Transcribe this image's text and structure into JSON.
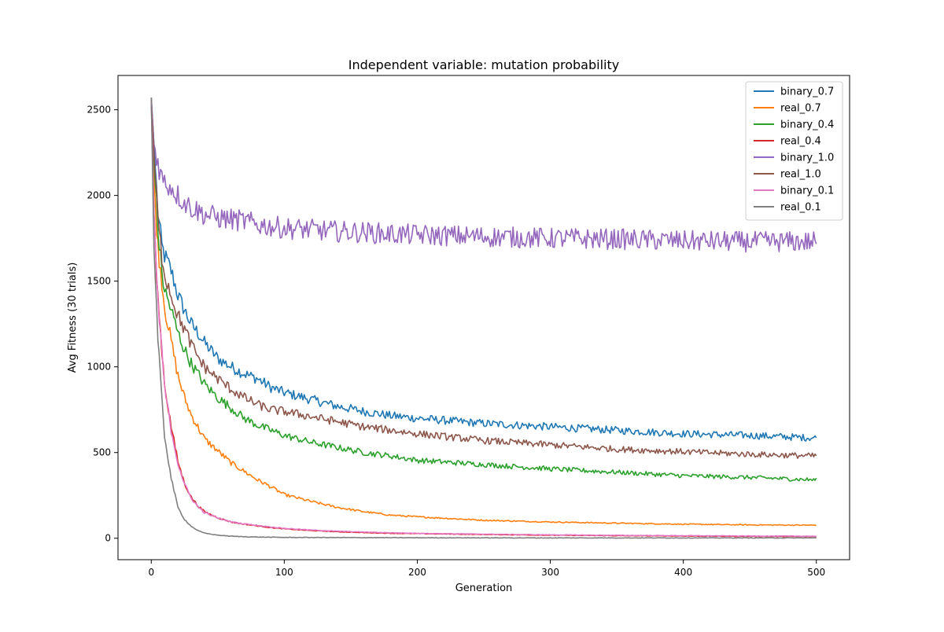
{
  "chart_data": {
    "type": "line",
    "title": "Independent variable: mutation probability",
    "xlabel": "Generation",
    "ylabel": "Avg Fitness (30 trials)",
    "xlim": [
      -25,
      525
    ],
    "ylim": [
      -125,
      2700
    ],
    "xticks": [
      0,
      100,
      200,
      300,
      400,
      500
    ],
    "yticks": [
      0,
      500,
      1000,
      1500,
      2000,
      2500
    ],
    "grid": false,
    "legend_position": "top-right",
    "series": [
      {
        "name": "binary_0.7",
        "color": "#1f77b4",
        "points": [
          [
            0,
            2570
          ],
          [
            2,
            2300
          ],
          [
            5,
            1900
          ],
          [
            8,
            1700
          ],
          [
            10,
            1650
          ],
          [
            15,
            1560
          ],
          [
            20,
            1420
          ],
          [
            25,
            1330
          ],
          [
            30,
            1250
          ],
          [
            35,
            1200
          ],
          [
            40,
            1140
          ],
          [
            50,
            1050
          ],
          [
            60,
            1000
          ],
          [
            70,
            960
          ],
          [
            80,
            930
          ],
          [
            90,
            880
          ],
          [
            100,
            850
          ],
          [
            120,
            810
          ],
          [
            140,
            770
          ],
          [
            160,
            740
          ],
          [
            180,
            715
          ],
          [
            200,
            700
          ],
          [
            250,
            670
          ],
          [
            300,
            650
          ],
          [
            350,
            630
          ],
          [
            400,
            610
          ],
          [
            450,
            600
          ],
          [
            500,
            585
          ]
        ]
      },
      {
        "name": "real_0.7",
        "color": "#ff7f0e",
        "points": [
          [
            0,
            2570
          ],
          [
            2,
            2100
          ],
          [
            5,
            1700
          ],
          [
            8,
            1500
          ],
          [
            10,
            1350
          ],
          [
            15,
            1150
          ],
          [
            20,
            950
          ],
          [
            25,
            820
          ],
          [
            30,
            720
          ],
          [
            35,
            650
          ],
          [
            40,
            580
          ],
          [
            50,
            510
          ],
          [
            60,
            440
          ],
          [
            70,
            390
          ],
          [
            80,
            340
          ],
          [
            90,
            300
          ],
          [
            100,
            255
          ],
          [
            120,
            215
          ],
          [
            140,
            180
          ],
          [
            160,
            155
          ],
          [
            180,
            135
          ],
          [
            200,
            125
          ],
          [
            250,
            105
          ],
          [
            300,
            95
          ],
          [
            350,
            88
          ],
          [
            400,
            82
          ],
          [
            450,
            78
          ],
          [
            500,
            76
          ]
        ]
      },
      {
        "name": "binary_0.4",
        "color": "#2ca02c",
        "points": [
          [
            0,
            2570
          ],
          [
            2,
            2200
          ],
          [
            5,
            1800
          ],
          [
            8,
            1550
          ],
          [
            10,
            1450
          ],
          [
            15,
            1330
          ],
          [
            20,
            1200
          ],
          [
            25,
            1100
          ],
          [
            30,
            1020
          ],
          [
            35,
            960
          ],
          [
            40,
            900
          ],
          [
            50,
            820
          ],
          [
            60,
            760
          ],
          [
            70,
            700
          ],
          [
            80,
            660
          ],
          [
            90,
            630
          ],
          [
            100,
            600
          ],
          [
            120,
            560
          ],
          [
            140,
            530
          ],
          [
            160,
            500
          ],
          [
            180,
            480
          ],
          [
            200,
            455
          ],
          [
            250,
            430
          ],
          [
            300,
            405
          ],
          [
            350,
            385
          ],
          [
            400,
            365
          ],
          [
            450,
            355
          ],
          [
            500,
            340
          ]
        ]
      },
      {
        "name": "real_0.4",
        "color": "#d62728",
        "points": [
          [
            0,
            2560
          ],
          [
            2,
            1900
          ],
          [
            5,
            1400
          ],
          [
            8,
            1100
          ],
          [
            10,
            900
          ],
          [
            15,
            650
          ],
          [
            20,
            450
          ],
          [
            25,
            320
          ],
          [
            30,
            240
          ],
          [
            35,
            190
          ],
          [
            40,
            155
          ],
          [
            50,
            120
          ],
          [
            60,
            95
          ],
          [
            70,
            82
          ],
          [
            80,
            72
          ],
          [
            90,
            62
          ],
          [
            100,
            55
          ],
          [
            120,
            45
          ],
          [
            140,
            38
          ],
          [
            160,
            33
          ],
          [
            180,
            29
          ],
          [
            200,
            27
          ],
          [
            250,
            22
          ],
          [
            300,
            18
          ],
          [
            350,
            15
          ],
          [
            400,
            13
          ],
          [
            450,
            11
          ],
          [
            500,
            10
          ]
        ]
      },
      {
        "name": "binary_1.0",
        "color": "#9467bd",
        "points": [
          [
            0,
            2570
          ],
          [
            2,
            2300
          ],
          [
            5,
            2200
          ],
          [
            8,
            2100
          ],
          [
            10,
            2080
          ],
          [
            15,
            2050
          ],
          [
            20,
            2000
          ],
          [
            25,
            1960
          ],
          [
            30,
            1930
          ],
          [
            35,
            1910
          ],
          [
            40,
            1890
          ],
          [
            50,
            1870
          ],
          [
            60,
            1860
          ],
          [
            70,
            1850
          ],
          [
            80,
            1830
          ],
          [
            90,
            1820
          ],
          [
            100,
            1810
          ],
          [
            120,
            1800
          ],
          [
            140,
            1790
          ],
          [
            160,
            1785
          ],
          [
            180,
            1775
          ],
          [
            200,
            1770
          ],
          [
            250,
            1760
          ],
          [
            300,
            1750
          ],
          [
            350,
            1745
          ],
          [
            400,
            1735
          ],
          [
            450,
            1730
          ],
          [
            500,
            1730
          ]
        ]
      },
      {
        "name": "real_1.0",
        "color": "#8c564b",
        "points": [
          [
            0,
            2560
          ],
          [
            2,
            2250
          ],
          [
            5,
            1850
          ],
          [
            8,
            1650
          ],
          [
            10,
            1550
          ],
          [
            15,
            1420
          ],
          [
            20,
            1300
          ],
          [
            25,
            1220
          ],
          [
            30,
            1130
          ],
          [
            35,
            1060
          ],
          [
            40,
            1000
          ],
          [
            50,
            930
          ],
          [
            60,
            870
          ],
          [
            70,
            820
          ],
          [
            80,
            780
          ],
          [
            90,
            750
          ],
          [
            100,
            740
          ],
          [
            120,
            710
          ],
          [
            140,
            680
          ],
          [
            160,
            650
          ],
          [
            180,
            630
          ],
          [
            200,
            610
          ],
          [
            250,
            570
          ],
          [
            300,
            545
          ],
          [
            350,
            520
          ],
          [
            400,
            505
          ],
          [
            450,
            490
          ],
          [
            500,
            480
          ]
        ]
      },
      {
        "name": "binary_0.1",
        "color": "#e377c2",
        "points": [
          [
            0,
            2560
          ],
          [
            2,
            1900
          ],
          [
            5,
            1380
          ],
          [
            8,
            1080
          ],
          [
            10,
            880
          ],
          [
            15,
            630
          ],
          [
            20,
            440
          ],
          [
            25,
            315
          ],
          [
            30,
            235
          ],
          [
            35,
            185
          ],
          [
            40,
            150
          ],
          [
            50,
            118
          ],
          [
            60,
            96
          ],
          [
            70,
            84
          ],
          [
            80,
            75
          ],
          [
            90,
            66
          ],
          [
            100,
            58
          ],
          [
            120,
            48
          ],
          [
            140,
            41
          ],
          [
            160,
            36
          ],
          [
            180,
            32
          ],
          [
            200,
            29
          ],
          [
            250,
            24
          ],
          [
            300,
            20
          ],
          [
            350,
            17
          ],
          [
            400,
            15
          ],
          [
            450,
            13
          ],
          [
            500,
            12
          ]
        ]
      },
      {
        "name": "real_0.1",
        "color": "#7f7f7f",
        "points": [
          [
            0,
            2570
          ],
          [
            2,
            1700
          ],
          [
            5,
            1150
          ],
          [
            8,
            800
          ],
          [
            10,
            600
          ],
          [
            15,
            350
          ],
          [
            20,
            180
          ],
          [
            25,
            110
          ],
          [
            30,
            70
          ],
          [
            35,
            45
          ],
          [
            40,
            30
          ],
          [
            50,
            18
          ],
          [
            60,
            12
          ],
          [
            70,
            9
          ],
          [
            80,
            7
          ],
          [
            90,
            6
          ],
          [
            100,
            5
          ],
          [
            150,
            4
          ],
          [
            200,
            3
          ],
          [
            300,
            2
          ],
          [
            400,
            2
          ],
          [
            500,
            2
          ]
        ]
      }
    ]
  }
}
